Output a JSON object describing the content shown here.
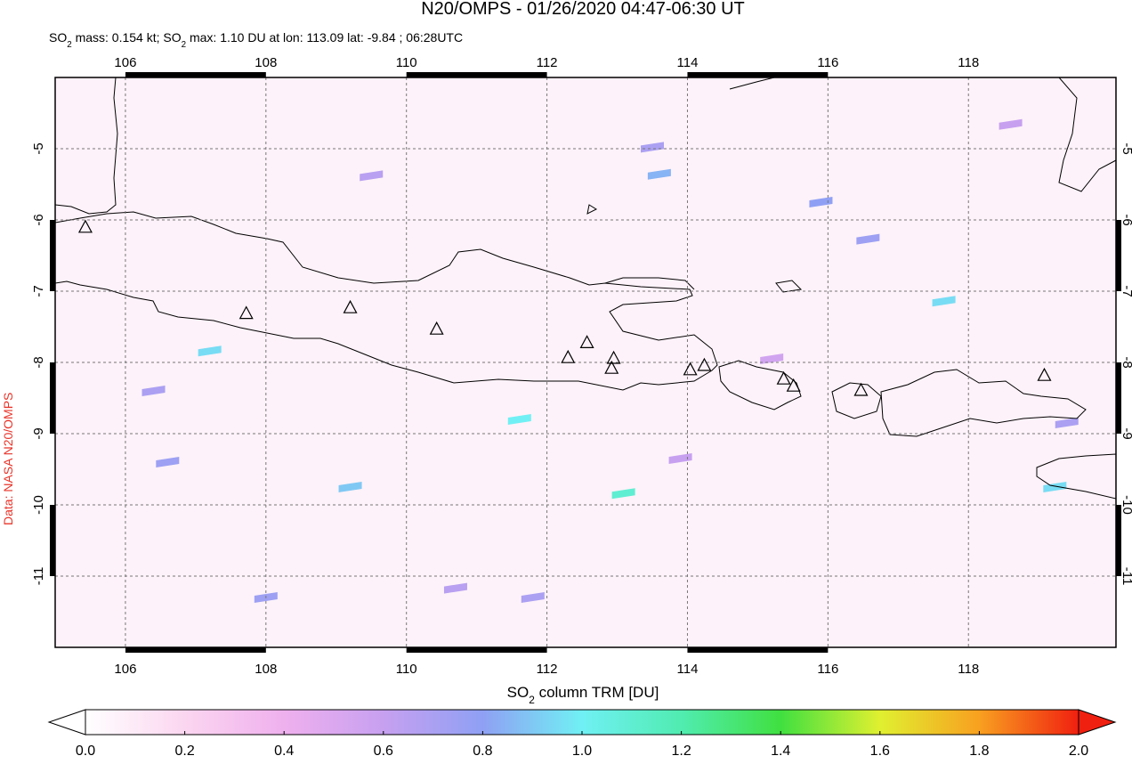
{
  "header": {
    "title": "N20/OMPS - 01/26/2020 04:47-06:30 UT",
    "subtitle": [
      "SO",
      "2",
      " mass: 0.154 kt; SO",
      "2",
      " max: 1.10 DU at lon: 113.09 lat: -9.84 ; 06:28UTC"
    ]
  },
  "map": {
    "lonlim": [
      105,
      120.1
    ],
    "latlim": [
      -12,
      -4
    ],
    "lonticks": [
      106,
      108,
      110,
      112,
      114,
      116,
      118
    ],
    "latticks": [
      -5,
      -6,
      -7,
      -8,
      -9,
      -10,
      -11
    ],
    "grid": true,
    "pixels": [
      [
        113.6,
        -5.36,
        0.85
      ],
      [
        115.9,
        -5.75,
        0.8
      ],
      [
        117.65,
        -7.14,
        0.95
      ],
      [
        116.57,
        -6.27,
        0.75
      ],
      [
        111.61,
        -8.8,
        1.0
      ],
      [
        113.09,
        -9.84,
        1.1
      ],
      [
        119.23,
        -9.75,
        0.95
      ],
      [
        107.2,
        -7.84,
        0.95
      ],
      [
        109.2,
        -9.75,
        0.9
      ],
      [
        113.5,
        -4.98,
        0.7
      ],
      [
        109.5,
        -5.38,
        0.65
      ],
      [
        111.8,
        -11.3,
        0.7
      ],
      [
        110.7,
        -11.17,
        0.65
      ],
      [
        118.6,
        -4.66,
        0.6
      ],
      [
        119.4,
        -8.85,
        0.7
      ],
      [
        106.4,
        -8.4,
        0.7
      ],
      [
        108.0,
        -11.3,
        0.75
      ],
      [
        113.9,
        -9.35,
        0.6
      ],
      [
        115.2,
        -7.95,
        0.55
      ],
      [
        106.6,
        -9.4,
        0.75
      ]
    ],
    "volcanoes": [
      [
        105.43,
        -6.11
      ],
      [
        107.72,
        -7.32
      ],
      [
        109.2,
        -7.24
      ],
      [
        110.43,
        -7.54
      ],
      [
        112.3,
        -7.94
      ],
      [
        112.57,
        -7.73
      ],
      [
        112.95,
        -7.95
      ],
      [
        112.92,
        -8.09
      ],
      [
        114.04,
        -8.11
      ],
      [
        114.24,
        -8.05
      ],
      [
        115.37,
        -8.24
      ],
      [
        115.51,
        -8.34
      ],
      [
        116.47,
        -8.4
      ],
      [
        119.08,
        -8.19
      ]
    ]
  },
  "colorbar": {
    "label": [
      "SO",
      "2",
      " column TRM [DU]"
    ],
    "lim": [
      0,
      2
    ],
    "ticks": [
      {
        "value": 0,
        "label": "0.0"
      },
      0.2,
      0.4,
      0.6,
      0.8,
      {
        "value": 1,
        "label": "1.0"
      },
      1.2,
      1.4,
      1.6,
      1.8,
      {
        "value": 2,
        "label": "2.0"
      }
    ]
  },
  "credit": "Data: NASA N20/OMPS"
}
